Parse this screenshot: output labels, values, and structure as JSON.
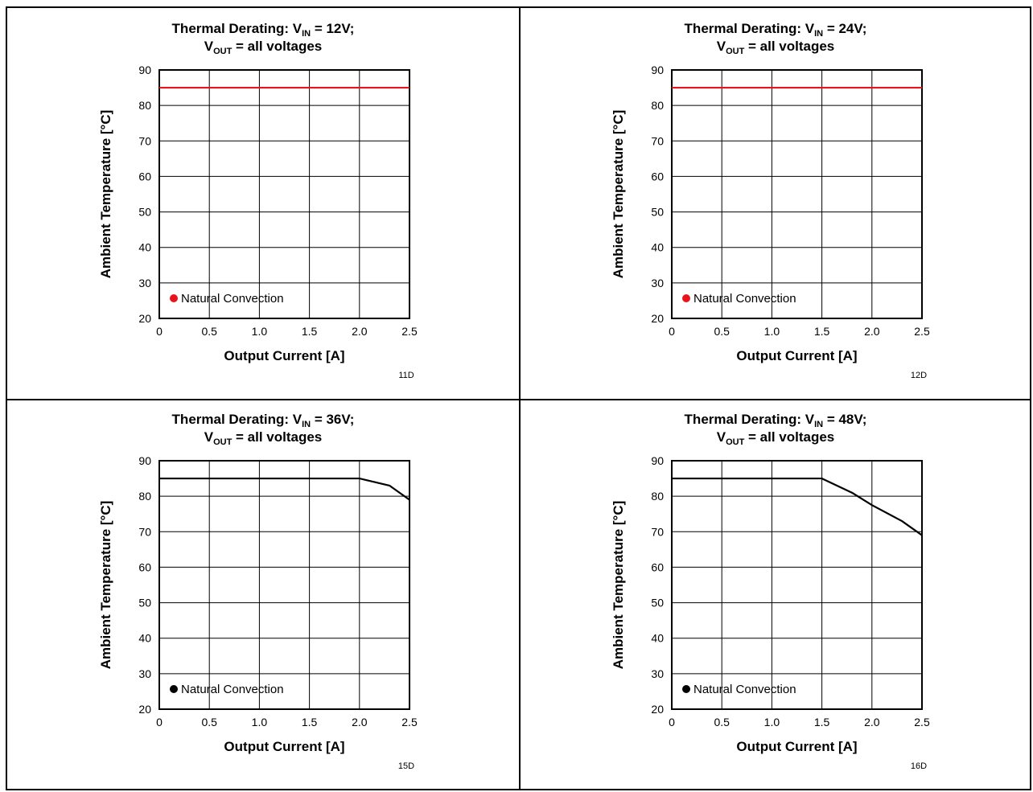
{
  "chart_data": [
    {
      "type": "line",
      "code": "11D",
      "title": {
        "line1_prefix": "Thermal Derating: V",
        "line1_sub": "IN",
        "line1_suffix": " = 12V;",
        "line2_prefix": "V",
        "line2_sub": "OUT",
        "line2_suffix": " = all voltages"
      },
      "xlabel": "Output Current [A]",
      "ylabel": "Ambient Temperature  [°C]",
      "xlim": [
        0,
        2.5
      ],
      "ylim": [
        20,
        90
      ],
      "xticks": [
        "0",
        "0.5",
        "1.0",
        "1.5",
        "2.0",
        "2.5"
      ],
      "yticks": [
        "20",
        "30",
        "40",
        "50",
        "60",
        "70",
        "80",
        "90"
      ],
      "grid": true,
      "legend": "bottom-left",
      "series": [
        {
          "name": "Natural Convection",
          "color": "#e8141c",
          "x": [
            0,
            2.5
          ],
          "y": [
            85,
            85
          ]
        }
      ]
    },
    {
      "type": "line",
      "code": "12D",
      "title": {
        "line1_prefix": "Thermal Derating: V",
        "line1_sub": "IN",
        "line1_suffix": " = 24V;",
        "line2_prefix": "V",
        "line2_sub": "OUT",
        "line2_suffix": " = all voltages"
      },
      "xlabel": "Output Current [A]",
      "ylabel": "Ambient Temperature  [°C]",
      "xlim": [
        0,
        2.5
      ],
      "ylim": [
        20,
        90
      ],
      "xticks": [
        "0",
        "0.5",
        "1.0",
        "1.5",
        "2.0",
        "2.5"
      ],
      "yticks": [
        "20",
        "30",
        "40",
        "50",
        "60",
        "70",
        "80",
        "90"
      ],
      "grid": true,
      "legend": "bottom-left",
      "series": [
        {
          "name": "Natural Convection",
          "color": "#e8141c",
          "x": [
            0,
            2.5
          ],
          "y": [
            85,
            85
          ]
        }
      ]
    },
    {
      "type": "line",
      "code": "15D",
      "title": {
        "line1_prefix": "Thermal Derating: V",
        "line1_sub": "IN",
        "line1_suffix": " = 36V;",
        "line2_prefix": "V",
        "line2_sub": "OUT",
        "line2_suffix": " = all voltages"
      },
      "xlabel": "Output Current [A]",
      "ylabel": "Ambient Temperature  [°C]",
      "xlim": [
        0,
        2.5
      ],
      "ylim": [
        20,
        90
      ],
      "xticks": [
        "0",
        "0.5",
        "1.0",
        "1.5",
        "2.0",
        "2.5"
      ],
      "yticks": [
        "20",
        "30",
        "40",
        "50",
        "60",
        "70",
        "80",
        "90"
      ],
      "grid": true,
      "legend": "bottom-left",
      "series": [
        {
          "name": "Natural Convection",
          "color": "#000000",
          "x": [
            0,
            2.0,
            2.3,
            2.5
          ],
          "y": [
            85,
            85,
            83,
            79
          ]
        }
      ]
    },
    {
      "type": "line",
      "code": "16D",
      "title": {
        "line1_prefix": "Thermal Derating: V",
        "line1_sub": "IN",
        "line1_suffix": " = 48V;",
        "line2_prefix": "V",
        "line2_sub": "OUT",
        "line2_suffix": " = all voltages"
      },
      "xlabel": "Output Current [A]",
      "ylabel": "Ambient Temperature  [°C]",
      "xlim": [
        0,
        2.5
      ],
      "ylim": [
        20,
        90
      ],
      "xticks": [
        "0",
        "0.5",
        "1.0",
        "1.5",
        "2.0",
        "2.5"
      ],
      "yticks": [
        "20",
        "30",
        "40",
        "50",
        "60",
        "70",
        "80",
        "90"
      ],
      "grid": true,
      "legend": "bottom-left",
      "series": [
        {
          "name": "Natural Convection",
          "color": "#000000",
          "x": [
            0,
            1.5,
            1.8,
            2.0,
            2.3,
            2.5
          ],
          "y": [
            85,
            85,
            81,
            77.5,
            73,
            69
          ]
        }
      ]
    }
  ]
}
